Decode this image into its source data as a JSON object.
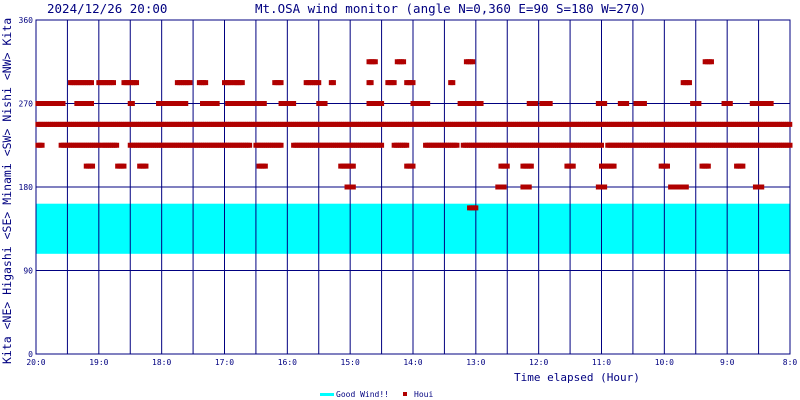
{
  "chart_data": {
    "type": "scatter",
    "title": "Mt.OSA wind monitor (angle N=0,360 E=90 S=180 W=270)",
    "timestamp": "2024/12/26 20:00",
    "xlabel": "Time elapsed (Hour)",
    "ylabel_parts": [
      "Kita",
      "<NE>",
      "Higashi",
      "<SE>",
      "Minami",
      "<SW>",
      "Nishi",
      "<NW>",
      "Kita"
    ],
    "xlim": [
      20,
      8
    ],
    "ylim": [
      0,
      360
    ],
    "y_ticks": [
      "0",
      "90",
      "180",
      "270",
      "360"
    ],
    "x_tick_labels": [
      "20:0",
      "19:0",
      "18:0",
      "17:0",
      "16:0",
      "15:0",
      "14:0",
      "13:0",
      "12:0",
      "11:0",
      "10:0",
      "9:0",
      "8:0"
    ],
    "grid": true,
    "good_wind_band": [
      108,
      162
    ],
    "legend": {
      "placement": "bottom-center",
      "good_wind_label": "Good Wind!!",
      "houi_label": "Houi"
    },
    "series": [
      {
        "name": "Houi",
        "bands": [
          {
            "angle": 247.5,
            "runs": [
              [
                19.97,
                8.0
              ]
            ]
          },
          {
            "angle": 225,
            "runs": [
              [
                19.97,
                19.88
              ],
              [
                19.6,
                19.0
              ],
              [
                18.95,
                18.7
              ],
              [
                18.5,
                16.6
              ],
              [
                16.5,
                16.1
              ],
              [
                15.9,
                14.5
              ],
              [
                14.3,
                14.1
              ],
              [
                13.8,
                13.3
              ],
              [
                13.2,
                11.0
              ],
              [
                10.9,
                8.0
              ]
            ]
          },
          {
            "angle": 270,
            "runs": [
              [
                19.97,
                19.55
              ],
              [
                19.35,
                19.1
              ],
              [
                18.5,
                18.45
              ],
              [
                18.05,
                17.6
              ],
              [
                17.35,
                17.1
              ],
              [
                16.95,
                16.65
              ],
              [
                16.6,
                16.35
              ],
              [
                16.1,
                15.9
              ],
              [
                15.5,
                15.4
              ],
              [
                14.7,
                14.5
              ],
              [
                14.0,
                13.75
              ],
              [
                13.25,
                12.9
              ],
              [
                12.15,
                12.05
              ],
              [
                11.95,
                11.8
              ],
              [
                11.05,
                10.95
              ],
              [
                10.7,
                10.6
              ],
              [
                10.45,
                10.3
              ],
              [
                9.55,
                9.45
              ],
              [
                9.05,
                8.95
              ],
              [
                8.6,
                8.3
              ],
              [
                7.98,
                7.92
              ]
            ]
          },
          {
            "angle": 292.5,
            "runs": [
              [
                19.45,
                19.1
              ],
              [
                19.0,
                18.75
              ],
              [
                18.6,
                18.4
              ],
              [
                17.75,
                17.55
              ],
              [
                17.4,
                17.3
              ],
              [
                17.0,
                16.9
              ],
              [
                16.85,
                16.7
              ],
              [
                16.2,
                16.1
              ],
              [
                15.7,
                15.5
              ],
              [
                15.3,
                15.25
              ],
              [
                14.7,
                14.65
              ],
              [
                14.4,
                14.3
              ],
              [
                14.1,
                14.0
              ],
              [
                13.4,
                13.35
              ],
              [
                9.7,
                9.6
              ]
            ]
          },
          {
            "angle": 315,
            "runs": [
              [
                14.7,
                14.6
              ],
              [
                14.25,
                14.15
              ],
              [
                13.15,
                13.05
              ],
              [
                9.35,
                9.25
              ]
            ]
          },
          {
            "angle": 202.5,
            "runs": [
              [
                19.2,
                19.1
              ],
              [
                18.7,
                18.6
              ],
              [
                18.35,
                18.25
              ],
              [
                16.45,
                16.35
              ],
              [
                15.15,
                14.95
              ],
              [
                14.1,
                14.0
              ],
              [
                12.6,
                12.5
              ],
              [
                12.25,
                12.1
              ],
              [
                11.55,
                11.45
              ],
              [
                11.0,
                10.8
              ],
              [
                10.05,
                9.95
              ],
              [
                9.4,
                9.3
              ],
              [
                8.85,
                8.75
              ]
            ]
          },
          {
            "angle": 180,
            "runs": [
              [
                15.05,
                14.95
              ],
              [
                12.65,
                12.55
              ],
              [
                12.25,
                12.15
              ],
              [
                11.05,
                10.95
              ],
              [
                9.9,
                9.8
              ],
              [
                9.75,
                9.65
              ],
              [
                8.55,
                8.45
              ]
            ]
          },
          {
            "angle": 157.5,
            "runs": [
              [
                13.1,
                13.0
              ]
            ]
          }
        ]
      }
    ]
  }
}
